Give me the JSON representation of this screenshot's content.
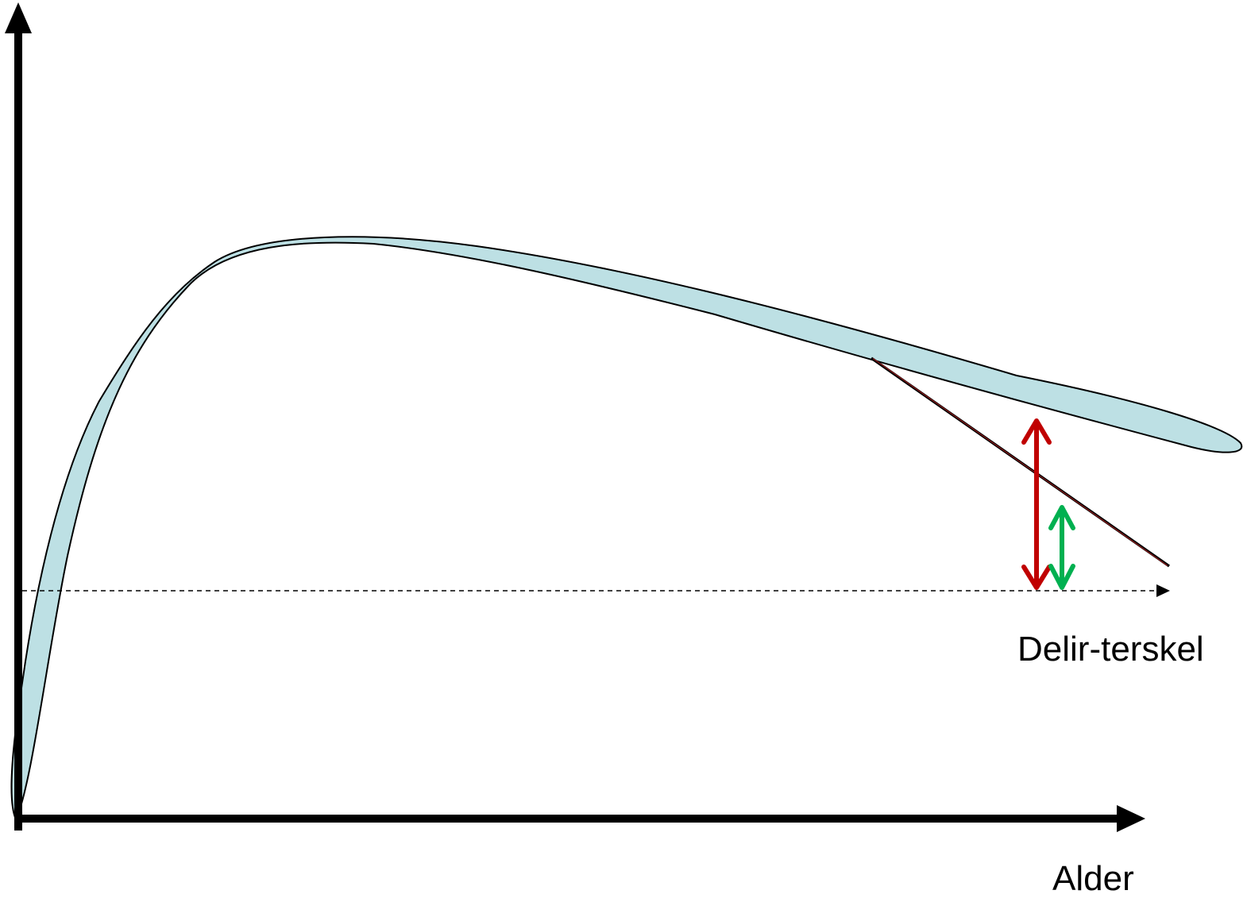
{
  "x_axis": {
    "label": "Alder"
  },
  "threshold": {
    "label": "Delir-terskel"
  },
  "colors": {
    "band_fill": "#BDE0E4",
    "outline": "#000000",
    "decline_line": "#8B1A1A",
    "red_arrow": "#C00000",
    "green_arrow": "#00B050",
    "threshold_line": "#000000"
  }
}
